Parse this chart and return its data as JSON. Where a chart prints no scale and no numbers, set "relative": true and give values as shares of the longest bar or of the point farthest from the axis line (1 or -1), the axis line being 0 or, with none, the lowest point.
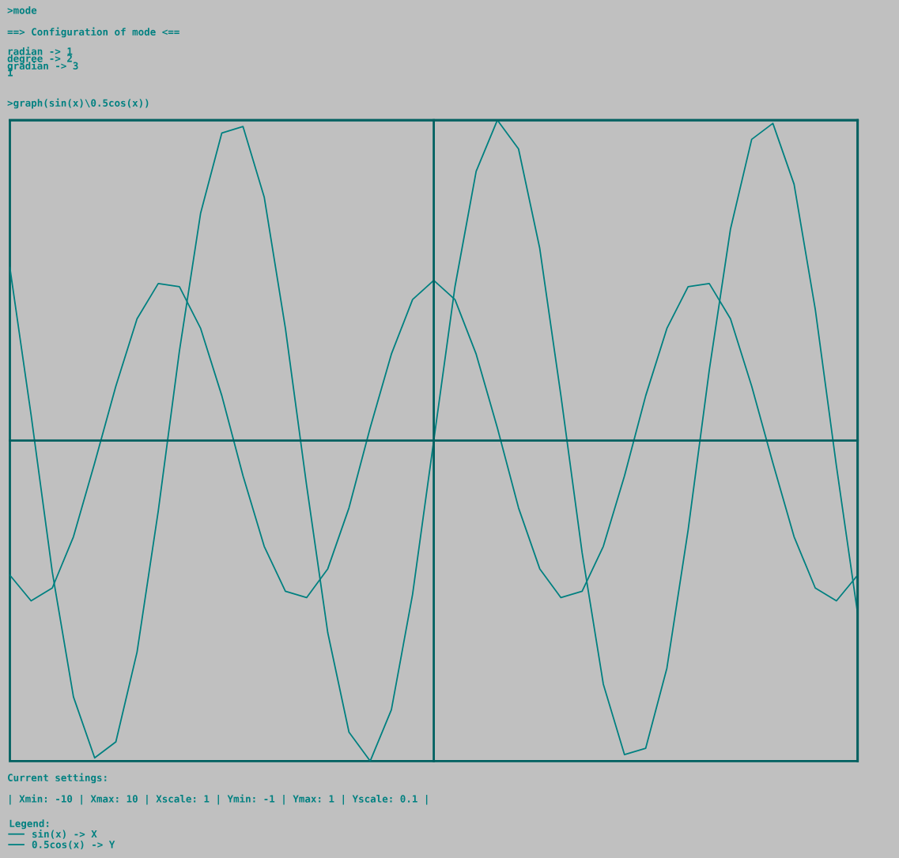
{
  "chart_data": {
    "type": "line",
    "title": ">graph(sin(x)\\0.5cos(x))",
    "relative": true,
    "categories": [
      null,
      null,
      null,
      null,
      null,
      null,
      null,
      null,
      null,
      null,
      null,
      null,
      null,
      null,
      null,
      null,
      null,
      null,
      null,
      null,
      null,
      null,
      null,
      null,
      null,
      null,
      null,
      null,
      null,
      null,
      null,
      null,
      null,
      null,
      null,
      null,
      null,
      null,
      null,
      null,
      null
    ],
    "series": [
      {
        "name": "sin(x) -> X",
        "color": "#008080",
        "values": [
          0.54,
          0.08,
          -0.41,
          -0.8,
          -0.99,
          -0.94,
          -0.66,
          -0.22,
          0.28,
          0.71,
          0.96,
          0.98,
          0.76,
          0.35,
          -0.14,
          -0.6,
          -0.91,
          -1.0,
          -0.84,
          -0.48,
          0,
          0.48,
          0.84,
          1.0,
          0.91,
          0.6,
          0.14,
          -0.35,
          -0.76,
          -0.98,
          -0.96,
          -0.71,
          -0.28,
          0.22,
          0.66,
          0.94,
          0.99,
          0.8,
          0.41,
          -0.08,
          -0.54
        ]
      },
      {
        "name": "0.5cos(x) -> Y",
        "color": "#008080",
        "values": [
          -0.42,
          -0.5,
          -0.46,
          -0.3,
          -0.07,
          0.17,
          0.38,
          0.49,
          0.48,
          0.35,
          0.14,
          -0.11,
          -0.33,
          -0.47,
          -0.49,
          -0.4,
          -0.21,
          0.04,
          0.27,
          0.44,
          0.5,
          0.44,
          0.27,
          0.04,
          -0.21,
          -0.4,
          -0.49,
          -0.47,
          -0.33,
          -0.11,
          0.14,
          0.35,
          0.48,
          0.49,
          0.38,
          0.17,
          -0.07,
          -0.3,
          -0.46,
          -0.5,
          -0.42
        ]
      }
    ],
    "grid": false,
    "legend": "bottom left",
    "legend_title": "Legend:",
    "annotations": [
      ">mode",
      "==> Configuration of mode <==",
      "radian -> 1",
      "degree -> 2",
      "gradian -> 3",
      "1",
      "Current settings:",
      "| Xmin: -10 | Xmax: 10 | Xscale: 1 | Ymin: -1 | Ymax: 1 | Yscale: 0.1 |"
    ]
  }
}
